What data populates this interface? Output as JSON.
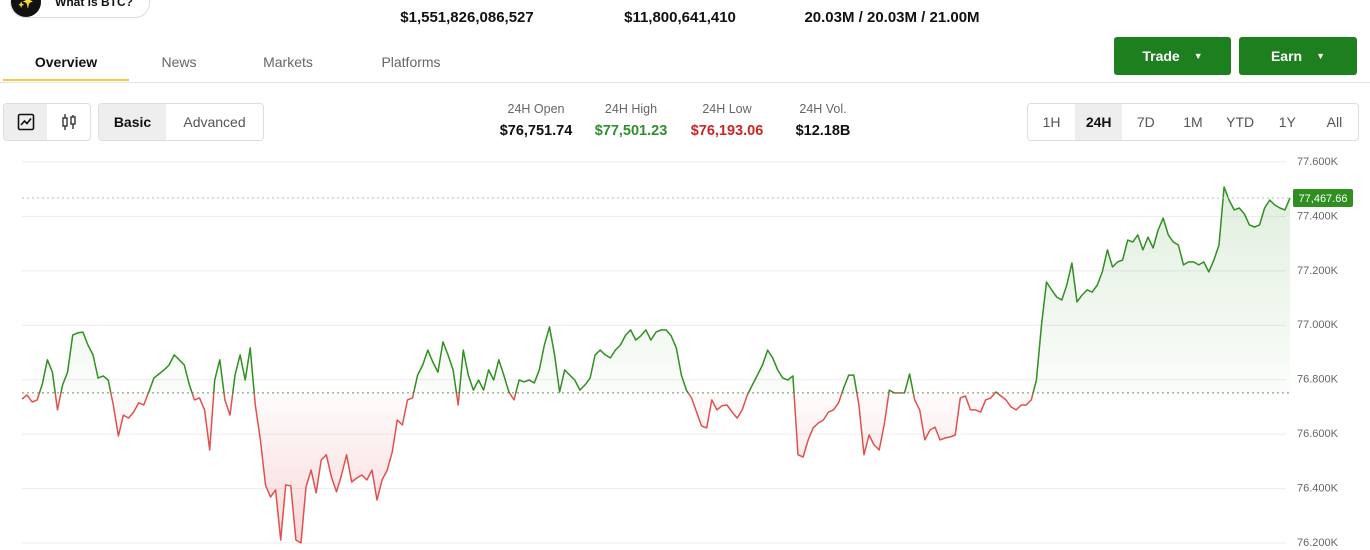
{
  "header": {
    "help_button": "What is BTC?",
    "stats": [
      "$1,551,826,086,527",
      "$11,800,641,410",
      "20.03M / 20.03M / 21.00M"
    ]
  },
  "tabs": [
    "Overview",
    "News",
    "Markets",
    "Platforms"
  ],
  "actions": [
    "Trade",
    "Earn"
  ],
  "view_modes": [
    "Basic",
    "Advanced"
  ],
  "summary": [
    {
      "label": "24H Open",
      "value": "$76,751.74"
    },
    {
      "label": "24H High",
      "value": "$77,501.23"
    },
    {
      "label": "24H Low",
      "value": "$76,193.06"
    },
    {
      "label": "24H Vol.",
      "value": "$12.18B"
    }
  ],
  "ranges": [
    "1H",
    "24H",
    "7D",
    "1M",
    "YTD",
    "1Y",
    "All"
  ],
  "chart_data": {
    "type": "line",
    "up_color": "#2f8f1f",
    "down_color": "#e05050",
    "grid": true,
    "baseline": 76751.74,
    "last_price": {
      "value": 77467.66,
      "label": "77,467.66"
    },
    "ylim": [
      76200,
      77600
    ],
    "yticks": [
      {
        "value": 76200,
        "label": "76.200K"
      },
      {
        "value": 76400,
        "label": "76.400K"
      },
      {
        "value": 76600,
        "label": "76.600K"
      },
      {
        "value": 76800,
        "label": "76.800K"
      },
      {
        "value": 77000,
        "label": "77.000K"
      },
      {
        "value": 77200,
        "label": "77.200K"
      },
      {
        "value": 77400,
        "label": "77.400K"
      },
      {
        "value": 77600,
        "label": "77.600K"
      }
    ],
    "values": [
      76729,
      76744,
      76718,
      76726,
      76784,
      76873,
      76828,
      76689,
      76781,
      76828,
      76964,
      76972,
      76975,
      76928,
      76891,
      76806,
      76814,
      76799,
      76707,
      76593,
      76670,
      76659,
      76681,
      76715,
      76707,
      76755,
      76806,
      76821,
      76836,
      76854,
      76891,
      76873,
      76854,
      76781,
      76726,
      76733,
      76689,
      76542,
      76799,
      76873,
      76726,
      76670,
      76817,
      76891,
      76799,
      76917,
      76707,
      76579,
      76413,
      76369,
      76395,
      76211,
      76413,
      76410,
      76211,
      76200,
      76406,
      76468,
      76384,
      76505,
      76524,
      76443,
      76388,
      76450,
      76524,
      76424,
      76439,
      76450,
      76432,
      76468,
      76358,
      76432,
      76468,
      76535,
      76652,
      76634,
      76726,
      76733,
      76817,
      76854,
      76909,
      76865,
      76828,
      76939,
      76891,
      76836,
      76707,
      76909,
      76817,
      76762,
      76799,
      76762,
      76836,
      76799,
      76873,
      76817,
      76755,
      76726,
      76799,
      76792,
      76799,
      76788,
      76836,
      76928,
      76994,
      76891,
      76755,
      76836,
      76817,
      76799,
      76762,
      76781,
      76806,
      76891,
      76909,
      76891,
      76880,
      76909,
      76928,
      76964,
      76983,
      76946,
      76961,
      76983,
      76946,
      76975,
      76983,
      76983,
      76961,
      76917,
      76817,
      76762,
      76733,
      76681,
      76630,
      76623,
      76726,
      76689,
      76704,
      76707,
      76681,
      76659,
      76689,
      76744,
      76781,
      76817,
      76854,
      76909,
      76880,
      76836,
      76806,
      76799,
      76814,
      76524,
      76516,
      76579,
      76623,
      76641,
      76652,
      76681,
      76689,
      76715,
      76770,
      76817,
      76817,
      76707,
      76524,
      76597,
      76560,
      76542,
      76634,
      76762,
      76751,
      76751,
      76751,
      76821,
      76726,
      76689,
      76579,
      76615,
      76626,
      76579,
      76586,
      76590,
      76597,
      76733,
      76740,
      76689,
      76689,
      76681,
      76726,
      76733,
      76755,
      76740,
      76726,
      76700,
      76689,
      76707,
      76707,
      76726,
      76799,
      77001,
      77159,
      77130,
      77104,
      77093,
      77148,
      77229,
      77086,
      77111,
      77130,
      77122,
      77148,
      77196,
      77277,
      77214,
      77233,
      77240,
      77313,
      77306,
      77332,
      77277,
      77324,
      77284,
      77350,
      77394,
      77332,
      77306,
      77295,
      77222,
      77233,
      77233,
      77222,
      77233,
      77196,
      77240,
      77295,
      77508,
      77460,
      77424,
      77431,
      77409,
      77369,
      77361,
      77369,
      77431,
      77460,
      77442,
      77431,
      77424,
      77467.66
    ]
  }
}
